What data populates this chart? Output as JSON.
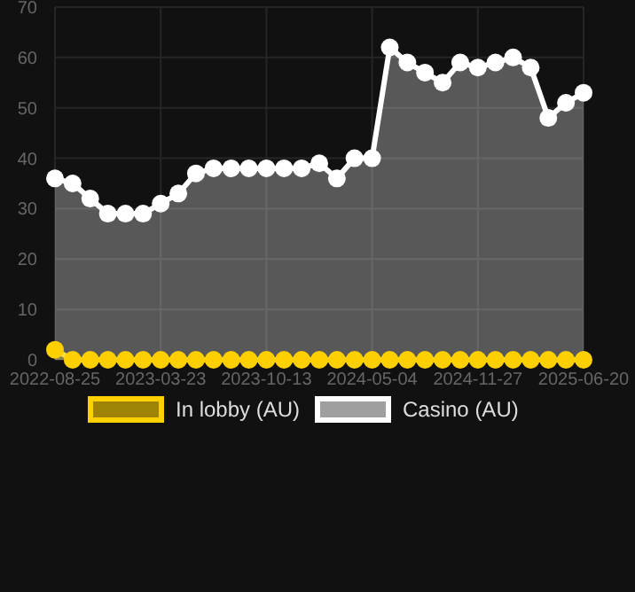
{
  "chart_data": {
    "type": "area",
    "categories": [
      "2022-08-25",
      null,
      null,
      null,
      null,
      null,
      "2023-03-23",
      null,
      null,
      null,
      null,
      null,
      "2023-10-13",
      null,
      null,
      null,
      null,
      null,
      "2024-05-04",
      null,
      null,
      null,
      null,
      null,
      "2024-11-27",
      null,
      null,
      null,
      null,
      null,
      "2025-06-20"
    ],
    "series": [
      {
        "name": "In lobby (AU)",
        "color": "#ffd000",
        "values": [
          2,
          0,
          0,
          0,
          0,
          0,
          0,
          0,
          0,
          0,
          0,
          0,
          0,
          0,
          0,
          0,
          0,
          0,
          0,
          0,
          0,
          0,
          0,
          0,
          0,
          0,
          0,
          0,
          0,
          0,
          0
        ]
      },
      {
        "name": "Casino (AU)",
        "color": "#ffffff",
        "values": [
          36,
          35,
          32,
          29,
          29,
          29,
          31,
          33,
          37,
          38,
          38,
          38,
          38,
          38,
          38,
          39,
          36,
          40,
          40,
          62,
          59,
          57,
          55,
          59,
          58,
          59,
          60,
          58,
          48,
          51,
          53
        ]
      }
    ],
    "ylim": [
      0,
      70
    ],
    "yticks": [
      0,
      10,
      20,
      30,
      40,
      50,
      60,
      70
    ],
    "grid": true,
    "legend": "bottom",
    "marker": "circle",
    "line_style": "solid"
  }
}
